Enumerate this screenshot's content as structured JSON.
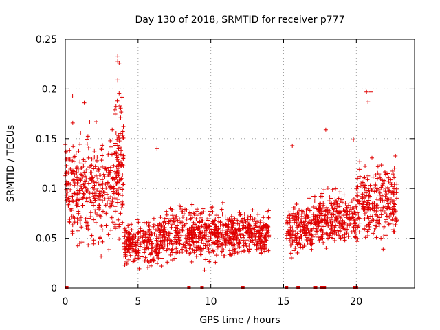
{
  "chart_data": {
    "type": "scatter",
    "title": "Day 130 of 2018, SRMTID for receiver p777",
    "xlabel": "GPS time / hours",
    "ylabel": "SRMTID / TECUs",
    "xlim": [
      0,
      24
    ],
    "ylim": [
      0,
      0.25
    ],
    "xticks": [
      0,
      5,
      10,
      15,
      20
    ],
    "yticks": [
      0,
      0.05,
      0.1,
      0.15,
      0.2,
      0.25
    ],
    "xtick_labels": [
      "0",
      "5",
      "10",
      "15",
      "20"
    ],
    "ytick_labels": [
      "0",
      "0.05",
      "0.1",
      "0.15",
      "0.2",
      "0.25"
    ],
    "grid": true,
    "marker": "+",
    "color": "#e00000",
    "zero_marks_hours": [
      0.1,
      8.5,
      9.4,
      12.2,
      15.2,
      16.0,
      17.2,
      17.6,
      17.8,
      19.9,
      20.0
    ],
    "segments": [
      {
        "x_start": 0.0,
        "x_end": 4.0,
        "y_center": 0.1,
        "y_spread": 0.045
      },
      {
        "x_start": 3.4,
        "x_end": 4.0,
        "y_center": 0.14,
        "y_spread": 0.06
      },
      {
        "x_start": 4.0,
        "x_end": 6.5,
        "y_center": 0.045,
        "y_spread": 0.02
      },
      {
        "x_start": 6.5,
        "x_end": 11.5,
        "y_center": 0.055,
        "y_spread": 0.022
      },
      {
        "x_start": 11.5,
        "x_end": 14.0,
        "y_center": 0.055,
        "y_spread": 0.018
      },
      {
        "x_start": 15.2,
        "x_end": 17.0,
        "y_center": 0.06,
        "y_spread": 0.02
      },
      {
        "x_start": 17.0,
        "x_end": 20.0,
        "y_center": 0.07,
        "y_spread": 0.022
      },
      {
        "x_start": 20.0,
        "x_end": 22.8,
        "y_center": 0.085,
        "y_spread": 0.03
      }
    ],
    "highlight_points": [
      {
        "x": 3.6,
        "y": 0.233
      },
      {
        "x": 3.6,
        "y": 0.228
      },
      {
        "x": 3.7,
        "y": 0.226
      },
      {
        "x": 3.6,
        "y": 0.209
      },
      {
        "x": 0.5,
        "y": 0.193
      },
      {
        "x": 1.3,
        "y": 0.186
      },
      {
        "x": 20.7,
        "y": 0.197
      },
      {
        "x": 21.0,
        "y": 0.197
      },
      {
        "x": 20.8,
        "y": 0.187
      },
      {
        "x": 17.9,
        "y": 0.159
      },
      {
        "x": 15.6,
        "y": 0.143
      },
      {
        "x": 6.3,
        "y": 0.14
      },
      {
        "x": 19.8,
        "y": 0.149
      }
    ]
  }
}
